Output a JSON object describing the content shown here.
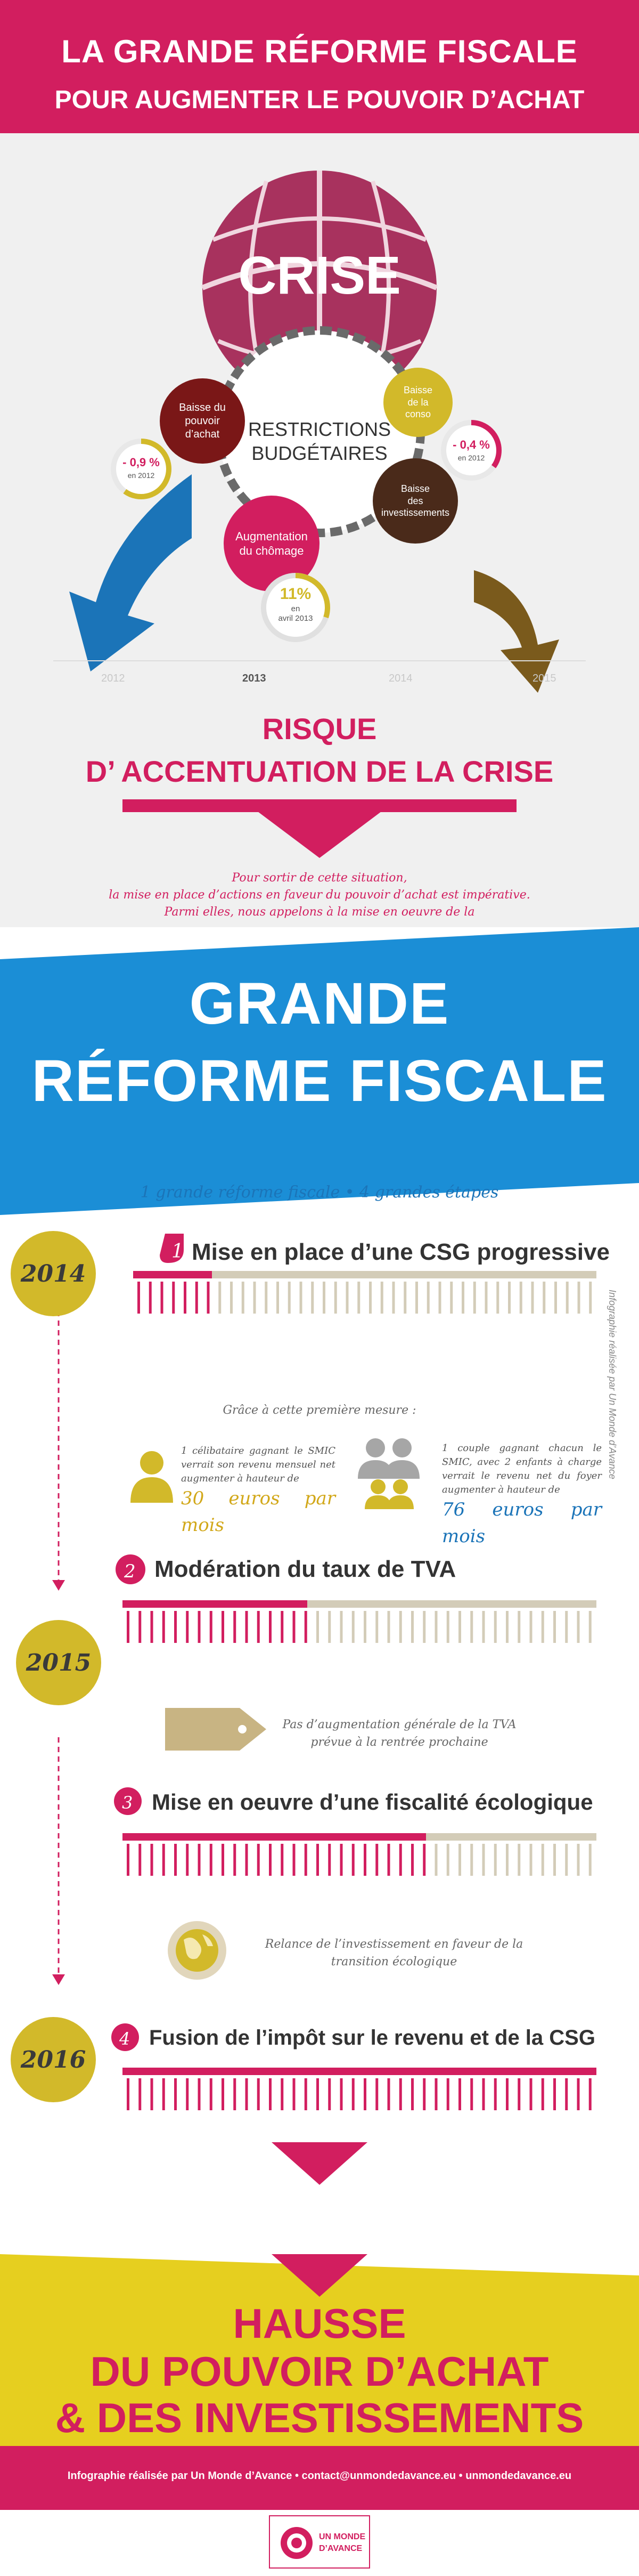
{
  "header": {
    "title": "LA GRANDE RÉFORME FISCALE",
    "subtitle": "POUR AUGMENTER LE POUVOIR D’ACHAT"
  },
  "crisis": {
    "ball_label": "CRISE",
    "center_label_1": "RESTRICTIONS",
    "center_label_2": "BUDGÉTAIRES",
    "bubbles": {
      "purchasing": {
        "l1": "Baisse du",
        "l2": "pouvoir",
        "l3": "d’achat"
      },
      "conso": {
        "l1": "Baisse",
        "l2": "de la",
        "l3": "conso"
      },
      "invest": {
        "l1": "Baisse",
        "l2": "des",
        "l3": "investissements"
      },
      "unemployment": {
        "l1": "Augmentation",
        "l2": "du chômage"
      }
    },
    "stats": {
      "purchasing": {
        "value": "- 0,9 %",
        "when": "en 2012",
        "fill_fraction": 0.6
      },
      "conso": {
        "value": "- 0,4 %",
        "when": "en 2012",
        "fill_fraction": 0.35
      },
      "unemployment": {
        "value": "11%",
        "l2": "en",
        "l3": "avril 2013",
        "fill_fraction": 0.3
      }
    },
    "years": [
      "2012",
      "2013",
      "2014",
      "2015"
    ],
    "active_year": "2013",
    "colors": {
      "ball": "#a8325e",
      "purchasing": "#7a1717",
      "conso": "#d2b92a",
      "invest": "#4a2a1a",
      "unemployment": "#d21e5f",
      "arrow_left": "#1b74b8",
      "arrow_right": "#7a5a1c"
    }
  },
  "risk": {
    "line1": "RISQUE",
    "line2": "D’ ACCENTUATION DE LA CRISE"
  },
  "intro": {
    "l1": "Pour sortir de cette situation,",
    "l2": "la mise en place d’actions en faveur du pouvoir d’achat est impérative.",
    "l3": "Parmi elles, nous appelons à la mise en oeuvre de la"
  },
  "banner": {
    "line1": "GRANDE",
    "line2": "RÉFORME FISCALE",
    "color": "#1b8ed6"
  },
  "steps": {
    "tagline": "1 grande réforme fiscale • 4 grandes étapes",
    "vertical_credit": "Infographie réalisée par Un Monde d’Avance",
    "years": [
      "2014",
      "2015",
      "2016"
    ],
    "items": [
      {
        "num": "1",
        "title": "Mise en place d’une CSG progressive",
        "progress": 0.17
      },
      {
        "num": "2",
        "title": "Modération du taux de TVA",
        "progress": 0.39
      },
      {
        "num": "3",
        "title": "Mise en oeuvre d’une fiscalité écologique",
        "progress": 0.64
      },
      {
        "num": "4",
        "title": "Fusion de l’impôt sur le revenu et de la CSG",
        "progress": 1.0
      }
    ],
    "measure_intro": "Grâce à cette première mesure :",
    "single": {
      "text": "1 célibataire gagnant le SMIC verrait son revenu mensuel net augmenter à hauteur de",
      "amount": "30 euros par mois"
    },
    "couple": {
      "text": "1 couple gagnant chacun le SMIC, avec 2 enfants à charge verrait le revenu net du foyer augmenter à hauteur de",
      "amount": "76 euros par mois"
    },
    "tva_note_1": "Pas d’augmentation générale de la TVA",
    "tva_note_2": "prévue à la rentrée prochaine",
    "eco_note_1": "Relance de l’investissement en faveur de la",
    "eco_note_2": "transition écologique"
  },
  "final": {
    "line1": "HAUSSE",
    "line2": "DU POUVOIR D’ACHAT",
    "line3": "& DES INVESTISSEMENTS",
    "band_color": "#e6cf1f"
  },
  "credit": {
    "text": "Infographie réalisée par Un Monde d’Avance • contact@unmondedavance.eu • unmondedavance.eu",
    "logo_l1": "UN MONDE",
    "logo_l2": "D’AVANCE"
  }
}
